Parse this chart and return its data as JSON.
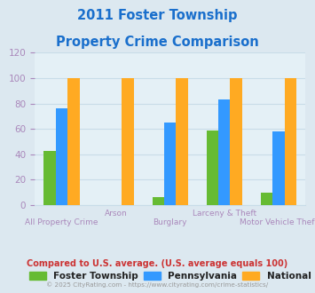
{
  "title_line1": "2011 Foster Township",
  "title_line2": "Property Crime Comparison",
  "title_color": "#1a6fcc",
  "categories": [
    "All Property Crime",
    "Arson",
    "Burglary",
    "Larceny & Theft",
    "Motor Vehicle Theft"
  ],
  "series": {
    "Foster Township": [
      43,
      0,
      6,
      59,
      10
    ],
    "Pennsylvania": [
      76,
      0,
      65,
      83,
      58
    ],
    "National": [
      100,
      100,
      100,
      100,
      100
    ]
  },
  "colors": {
    "Foster Township": "#66bb33",
    "Pennsylvania": "#3399ff",
    "National": "#ffaa22"
  },
  "ylim": [
    0,
    120
  ],
  "yticks": [
    0,
    20,
    40,
    60,
    80,
    100,
    120
  ],
  "background_color": "#dce8f0",
  "plot_bg_color": "#e4f0f6",
  "footnote": "Compared to U.S. average. (U.S. average equals 100)",
  "copyright": "© 2025 CityRating.com - https://www.cityrating.com/crime-statistics/",
  "footnote_color": "#cc3333",
  "copyright_color": "#999999",
  "grid_color": "#c8dce8",
  "tick_color": "#aa88bb",
  "bar_width": 0.22
}
